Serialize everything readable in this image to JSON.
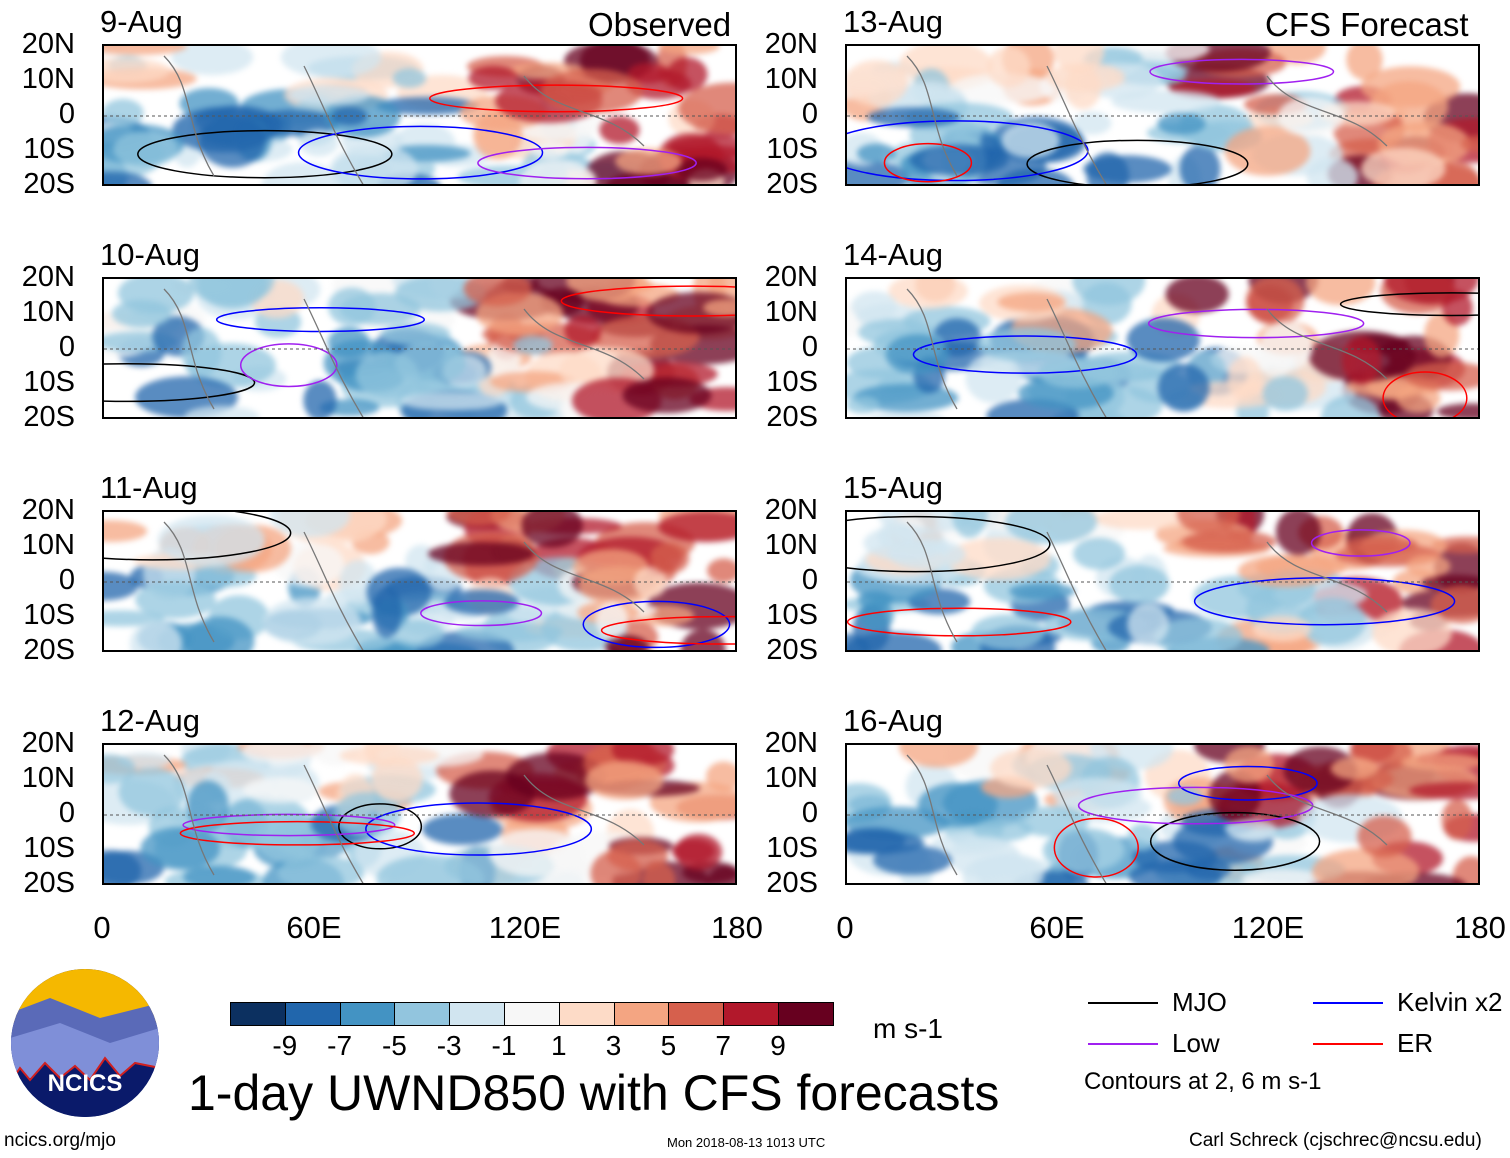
{
  "chart_data": {
    "type": "heatmap",
    "title": "1-day UWND850 with CFS forecasts",
    "variable": "UWND850",
    "units": "m s-1",
    "column_titles": [
      "Observed",
      "CFS Forecast"
    ],
    "panels": [
      {
        "date": "9-Aug",
        "group": "Observed"
      },
      {
        "date": "10-Aug",
        "group": "Observed"
      },
      {
        "date": "11-Aug",
        "group": "Observed"
      },
      {
        "date": "12-Aug",
        "group": "Observed"
      },
      {
        "date": "13-Aug",
        "group": "CFS Forecast"
      },
      {
        "date": "14-Aug",
        "group": "CFS Forecast"
      },
      {
        "date": "15-Aug",
        "group": "CFS Forecast"
      },
      {
        "date": "16-Aug",
        "group": "CFS Forecast"
      }
    ],
    "lat_ticks": [
      "20N",
      "10N",
      "0",
      "10S",
      "20S"
    ],
    "lon_ticks": [
      "0",
      "60E",
      "120E",
      "180"
    ],
    "xlim": [
      0,
      180
    ],
    "ylim": [
      -20,
      20
    ],
    "colorbar": {
      "levels": [
        "-9",
        "-7",
        "-5",
        "-3",
        "-1",
        "1",
        "3",
        "5",
        "7",
        "9"
      ],
      "colors": [
        "#0c3060",
        "#2166ac",
        "#4393c3",
        "#92c5de",
        "#d1e5f0",
        "#f7f7f7",
        "#fddbc7",
        "#f4a582",
        "#d6604d",
        "#b2182b",
        "#67001f"
      ]
    },
    "legend": [
      {
        "label": "MJO",
        "color": "#000000"
      },
      {
        "label": "Kelvin x2",
        "color": "#0000ff"
      },
      {
        "label": "Low",
        "color": "#a020f0"
      },
      {
        "label": "ER",
        "color": "#ff0000"
      }
    ],
    "contour_note": "Contours at 2, 6 m s-1"
  },
  "footer": {
    "url": "ncics.org/mjo",
    "timestamp": "Mon 2018-08-13 1013 UTC",
    "author": "Carl Schreck (cjschrec@ncsu.edu)",
    "logo_text": "NCICS"
  }
}
